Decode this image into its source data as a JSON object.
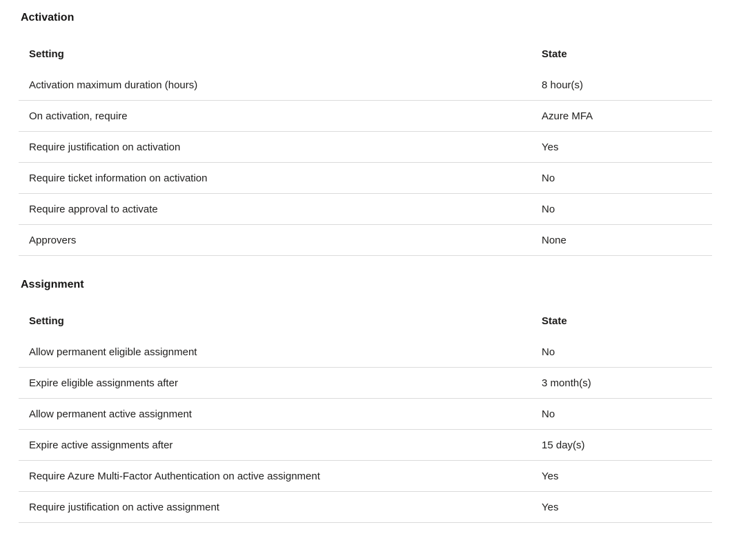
{
  "page": {
    "background_color": "#ffffff",
    "text_color": "#1f1e1d",
    "separator_color": "#dbdbdb"
  },
  "sections": [
    {
      "title": "Activation",
      "columns": {
        "setting": "Setting",
        "state": "State"
      },
      "rows": [
        {
          "setting": "Activation maximum duration (hours)",
          "state": "8 hour(s)"
        },
        {
          "setting": "On activation, require",
          "state": "Azure MFA"
        },
        {
          "setting": "Require justification on activation",
          "state": "Yes"
        },
        {
          "setting": "Require ticket information on activation",
          "state": "No"
        },
        {
          "setting": "Require approval to activate",
          "state": "No"
        },
        {
          "setting": "Approvers",
          "state": "None"
        }
      ]
    },
    {
      "title": "Assignment",
      "columns": {
        "setting": "Setting",
        "state": "State"
      },
      "rows": [
        {
          "setting": "Allow permanent eligible assignment",
          "state": "No"
        },
        {
          "setting": "Expire eligible assignments after",
          "state": "3 month(s)"
        },
        {
          "setting": "Allow permanent active assignment",
          "state": "No"
        },
        {
          "setting": "Expire active assignments after",
          "state": "15 day(s)"
        },
        {
          "setting": "Require Azure Multi-Factor Authentication on active assignment",
          "state": "Yes"
        },
        {
          "setting": "Require justification on active assignment",
          "state": "Yes"
        }
      ]
    }
  ]
}
